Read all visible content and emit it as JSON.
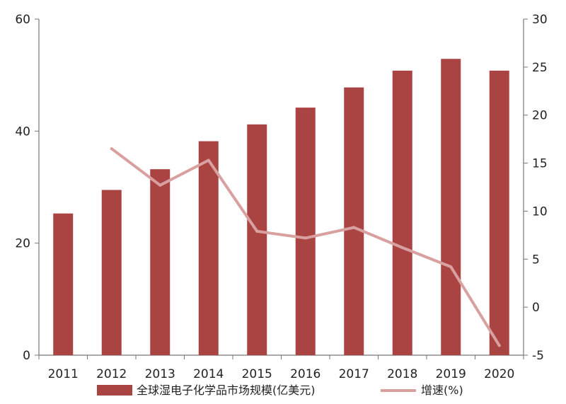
{
  "chart_data": {
    "type": "bar",
    "title": "",
    "categories": [
      "2011",
      "2012",
      "2013",
      "2014",
      "2015",
      "2016",
      "2017",
      "2018",
      "2019",
      "2020"
    ],
    "series": [
      {
        "name": "全球湿电子化学品市场规模(亿美元)",
        "type": "bar",
        "axis": "left",
        "color": "#a94442",
        "values": [
          25.3,
          29.5,
          33.2,
          38.2,
          41.2,
          44.2,
          47.8,
          50.8,
          52.9,
          50.8
        ]
      },
      {
        "name": "增速(%)",
        "type": "line",
        "axis": "right",
        "color": "#d9a0a0",
        "values": [
          null,
          16.5,
          12.7,
          15.3,
          7.9,
          7.2,
          8.3,
          6.2,
          4.2,
          -4.0
        ]
      }
    ],
    "y_left": {
      "min": 0,
      "max": 60,
      "ticks": [
        "0",
        "20",
        "40",
        "60"
      ]
    },
    "y_right": {
      "min": -5,
      "max": 30,
      "ticks": [
        "-5",
        "0",
        "5",
        "10",
        "15",
        "20",
        "25",
        "30"
      ]
    },
    "legend": {
      "position": "bottom"
    },
    "grid": false
  }
}
